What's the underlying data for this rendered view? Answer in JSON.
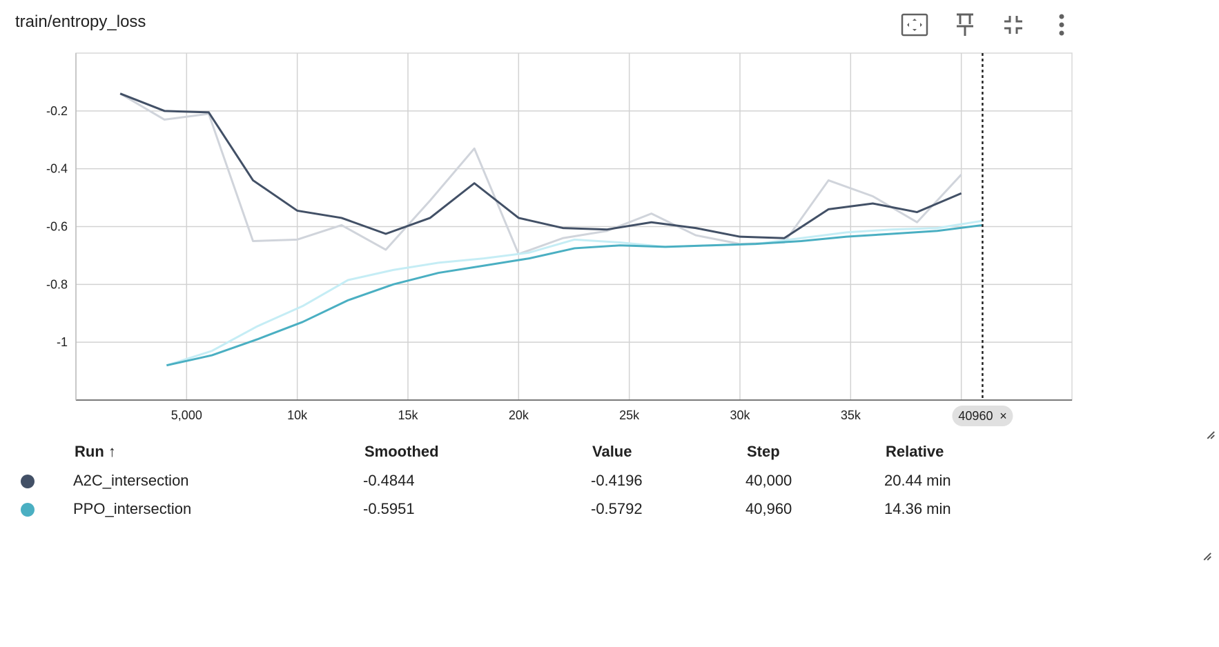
{
  "card": {
    "title": "train/entropy_loss",
    "toolbar_icons": [
      "fit-domain-icon",
      "pin-icon",
      "collapse-icon",
      "more-vert-icon"
    ]
  },
  "chart_data": {
    "type": "line",
    "xlabel": "",
    "ylabel": "",
    "xlim": [
      0,
      45000
    ],
    "ylim": [
      -1.2,
      0
    ],
    "x_ticks": [
      5000,
      10000,
      15000,
      20000,
      25000,
      30000,
      35000
    ],
    "x_tick_labels": [
      "5,000",
      "10k",
      "15k",
      "20k",
      "25k",
      "30k",
      "35k"
    ],
    "y_ticks": [
      -0.2,
      -0.4,
      -0.6,
      -0.8,
      -1
    ],
    "y_tick_labels": [
      "-0.2",
      "-0.4",
      "-0.6",
      "-0.8",
      "-1"
    ],
    "grid": true,
    "hover_step": 40960,
    "hover_step_label": "40960",
    "series": [
      {
        "name": "A2C_intersection",
        "color": "#425066",
        "raw_color": "#d0d4db",
        "x": [
          2000,
          4000,
          6000,
          8000,
          10000,
          12000,
          14000,
          16000,
          18000,
          20000,
          22000,
          24000,
          26000,
          28000,
          30000,
          32000,
          34000,
          36000,
          38000,
          40000
        ],
        "raw": [
          -0.14,
          -0.23,
          -0.21,
          -0.65,
          -0.645,
          -0.595,
          -0.68,
          -0.51,
          -0.33,
          -0.695,
          -0.64,
          -0.615,
          -0.555,
          -0.63,
          -0.66,
          -0.655,
          -0.44,
          -0.495,
          -0.585,
          -0.42
        ],
        "smoothed": [
          -0.14,
          -0.2,
          -0.205,
          -0.44,
          -0.545,
          -0.57,
          -0.625,
          -0.57,
          -0.45,
          -0.57,
          -0.605,
          -0.61,
          -0.585,
          -0.605,
          -0.635,
          -0.64,
          -0.54,
          -0.52,
          -0.55,
          -0.485
        ]
      },
      {
        "name": "PPO_intersection",
        "color": "#4aafc2",
        "raw_color": "#c5edf5",
        "x": [
          4096,
          6144,
          8192,
          10240,
          12288,
          14336,
          16384,
          18432,
          20480,
          22528,
          24576,
          26624,
          28672,
          30720,
          32768,
          34816,
          36864,
          38912,
          40960
        ],
        "raw": [
          -1.08,
          -1.03,
          -0.945,
          -0.875,
          -0.785,
          -0.75,
          -0.725,
          -0.71,
          -0.69,
          -0.645,
          -0.655,
          -0.67,
          -0.665,
          -0.66,
          -0.64,
          -0.62,
          -0.61,
          -0.605,
          -0.58
        ],
        "smoothed": [
          -1.08,
          -1.045,
          -0.99,
          -0.93,
          -0.855,
          -0.8,
          -0.76,
          -0.735,
          -0.71,
          -0.675,
          -0.665,
          -0.67,
          -0.665,
          -0.66,
          -0.65,
          -0.635,
          -0.625,
          -0.615,
          -0.595
        ]
      }
    ]
  },
  "table": {
    "headers": {
      "run": "Run ↑",
      "smoothed": "Smoothed",
      "value": "Value",
      "step": "Step",
      "relative": "Relative"
    },
    "rows": [
      {
        "run": "A2C_intersection",
        "color": "#425066",
        "smoothed": "-0.4844",
        "value": "-0.4196",
        "step": "40,000",
        "relative": "20.44 min"
      },
      {
        "run": "PPO_intersection",
        "color": "#4aafc2",
        "smoothed": "-0.5951",
        "value": "-0.5792",
        "step": "40,960",
        "relative": "14.36 min"
      }
    ]
  }
}
